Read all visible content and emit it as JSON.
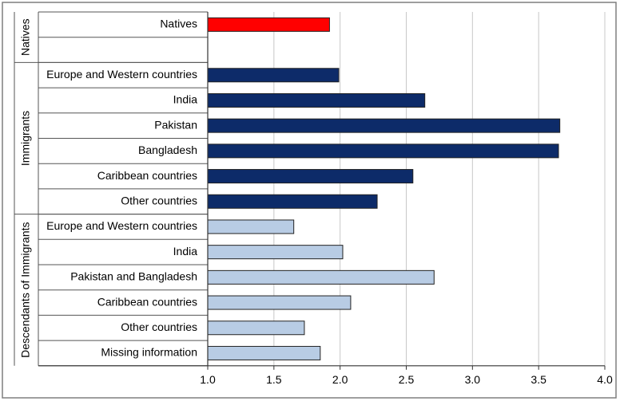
{
  "chart_data": {
    "type": "bar",
    "orientation": "horizontal",
    "groups": [
      {
        "label": "Natives",
        "rows": [
          {
            "label": "Natives",
            "value": 1.92
          },
          {
            "label": "",
            "value": null
          }
        ]
      },
      {
        "label": "Immigrants",
        "rows": [
          {
            "label": "Europe and Western countries",
            "value": 1.99
          },
          {
            "label": "India",
            "value": 2.64
          },
          {
            "label": "Pakistan",
            "value": 3.66
          },
          {
            "label": "Bangladesh",
            "value": 3.65
          },
          {
            "label": "Caribbean countries",
            "value": 2.55
          },
          {
            "label": "Other countries",
            "value": 2.28
          }
        ]
      },
      {
        "label": "Descendants of Immigrants",
        "rows": [
          {
            "label": "Europe and Western countries",
            "value": 1.65
          },
          {
            "label": "India",
            "value": 2.02
          },
          {
            "label": "Pakistan and Bangladesh",
            "value": 2.71
          },
          {
            "label": "Caribbean countries",
            "value": 2.08
          },
          {
            "label": "Other countries",
            "value": 1.73
          },
          {
            "label": "Missing information",
            "value": 1.85
          }
        ]
      }
    ],
    "xlim": [
      1.0,
      4.0
    ],
    "xticks": [
      "1.0",
      "1.5",
      "2.0",
      "2.5",
      "3.0",
      "3.5",
      "4.0"
    ],
    "grid": true,
    "colors": {
      "Natives": "#ff0000",
      "Immigrants": "#0d2b69",
      "Descendants of Immigrants": "#b8cce4",
      "border": "#222222",
      "grid": "#c8c8c8"
    }
  }
}
